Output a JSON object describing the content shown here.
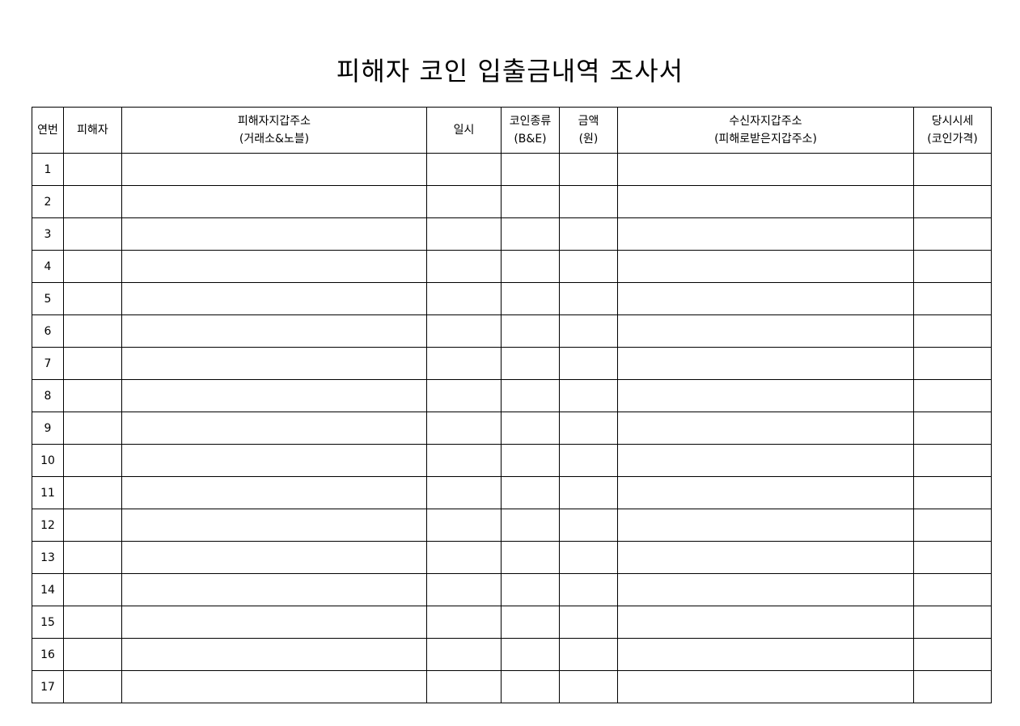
{
  "title": "피해자 코인 입출금내역 조사서",
  "headers": {
    "no": "연번",
    "victim": "피해자",
    "victim_wallet": {
      "line1": "피해자지갑주소",
      "line2": "(거래소&노블)"
    },
    "datetime": "일시",
    "coin_type": {
      "line1": "코인종류",
      "line2": "(B&E)"
    },
    "amount": {
      "line1": "금액",
      "line2": "(원)"
    },
    "receiver_wallet": {
      "line1": "수신자지갑주소",
      "line2": "(피해로받은지갑주소)"
    },
    "market_price": {
      "line1": "당시시세",
      "line2": "(코인가격)"
    }
  },
  "rows": [
    {
      "no": "1"
    },
    {
      "no": "2"
    },
    {
      "no": "3"
    },
    {
      "no": "4"
    },
    {
      "no": "5"
    },
    {
      "no": "6"
    },
    {
      "no": "7"
    },
    {
      "no": "8"
    },
    {
      "no": "9"
    },
    {
      "no": "10"
    },
    {
      "no": "11"
    },
    {
      "no": "12"
    },
    {
      "no": "13"
    },
    {
      "no": "14"
    },
    {
      "no": "15"
    },
    {
      "no": "16"
    },
    {
      "no": "17"
    }
  ]
}
